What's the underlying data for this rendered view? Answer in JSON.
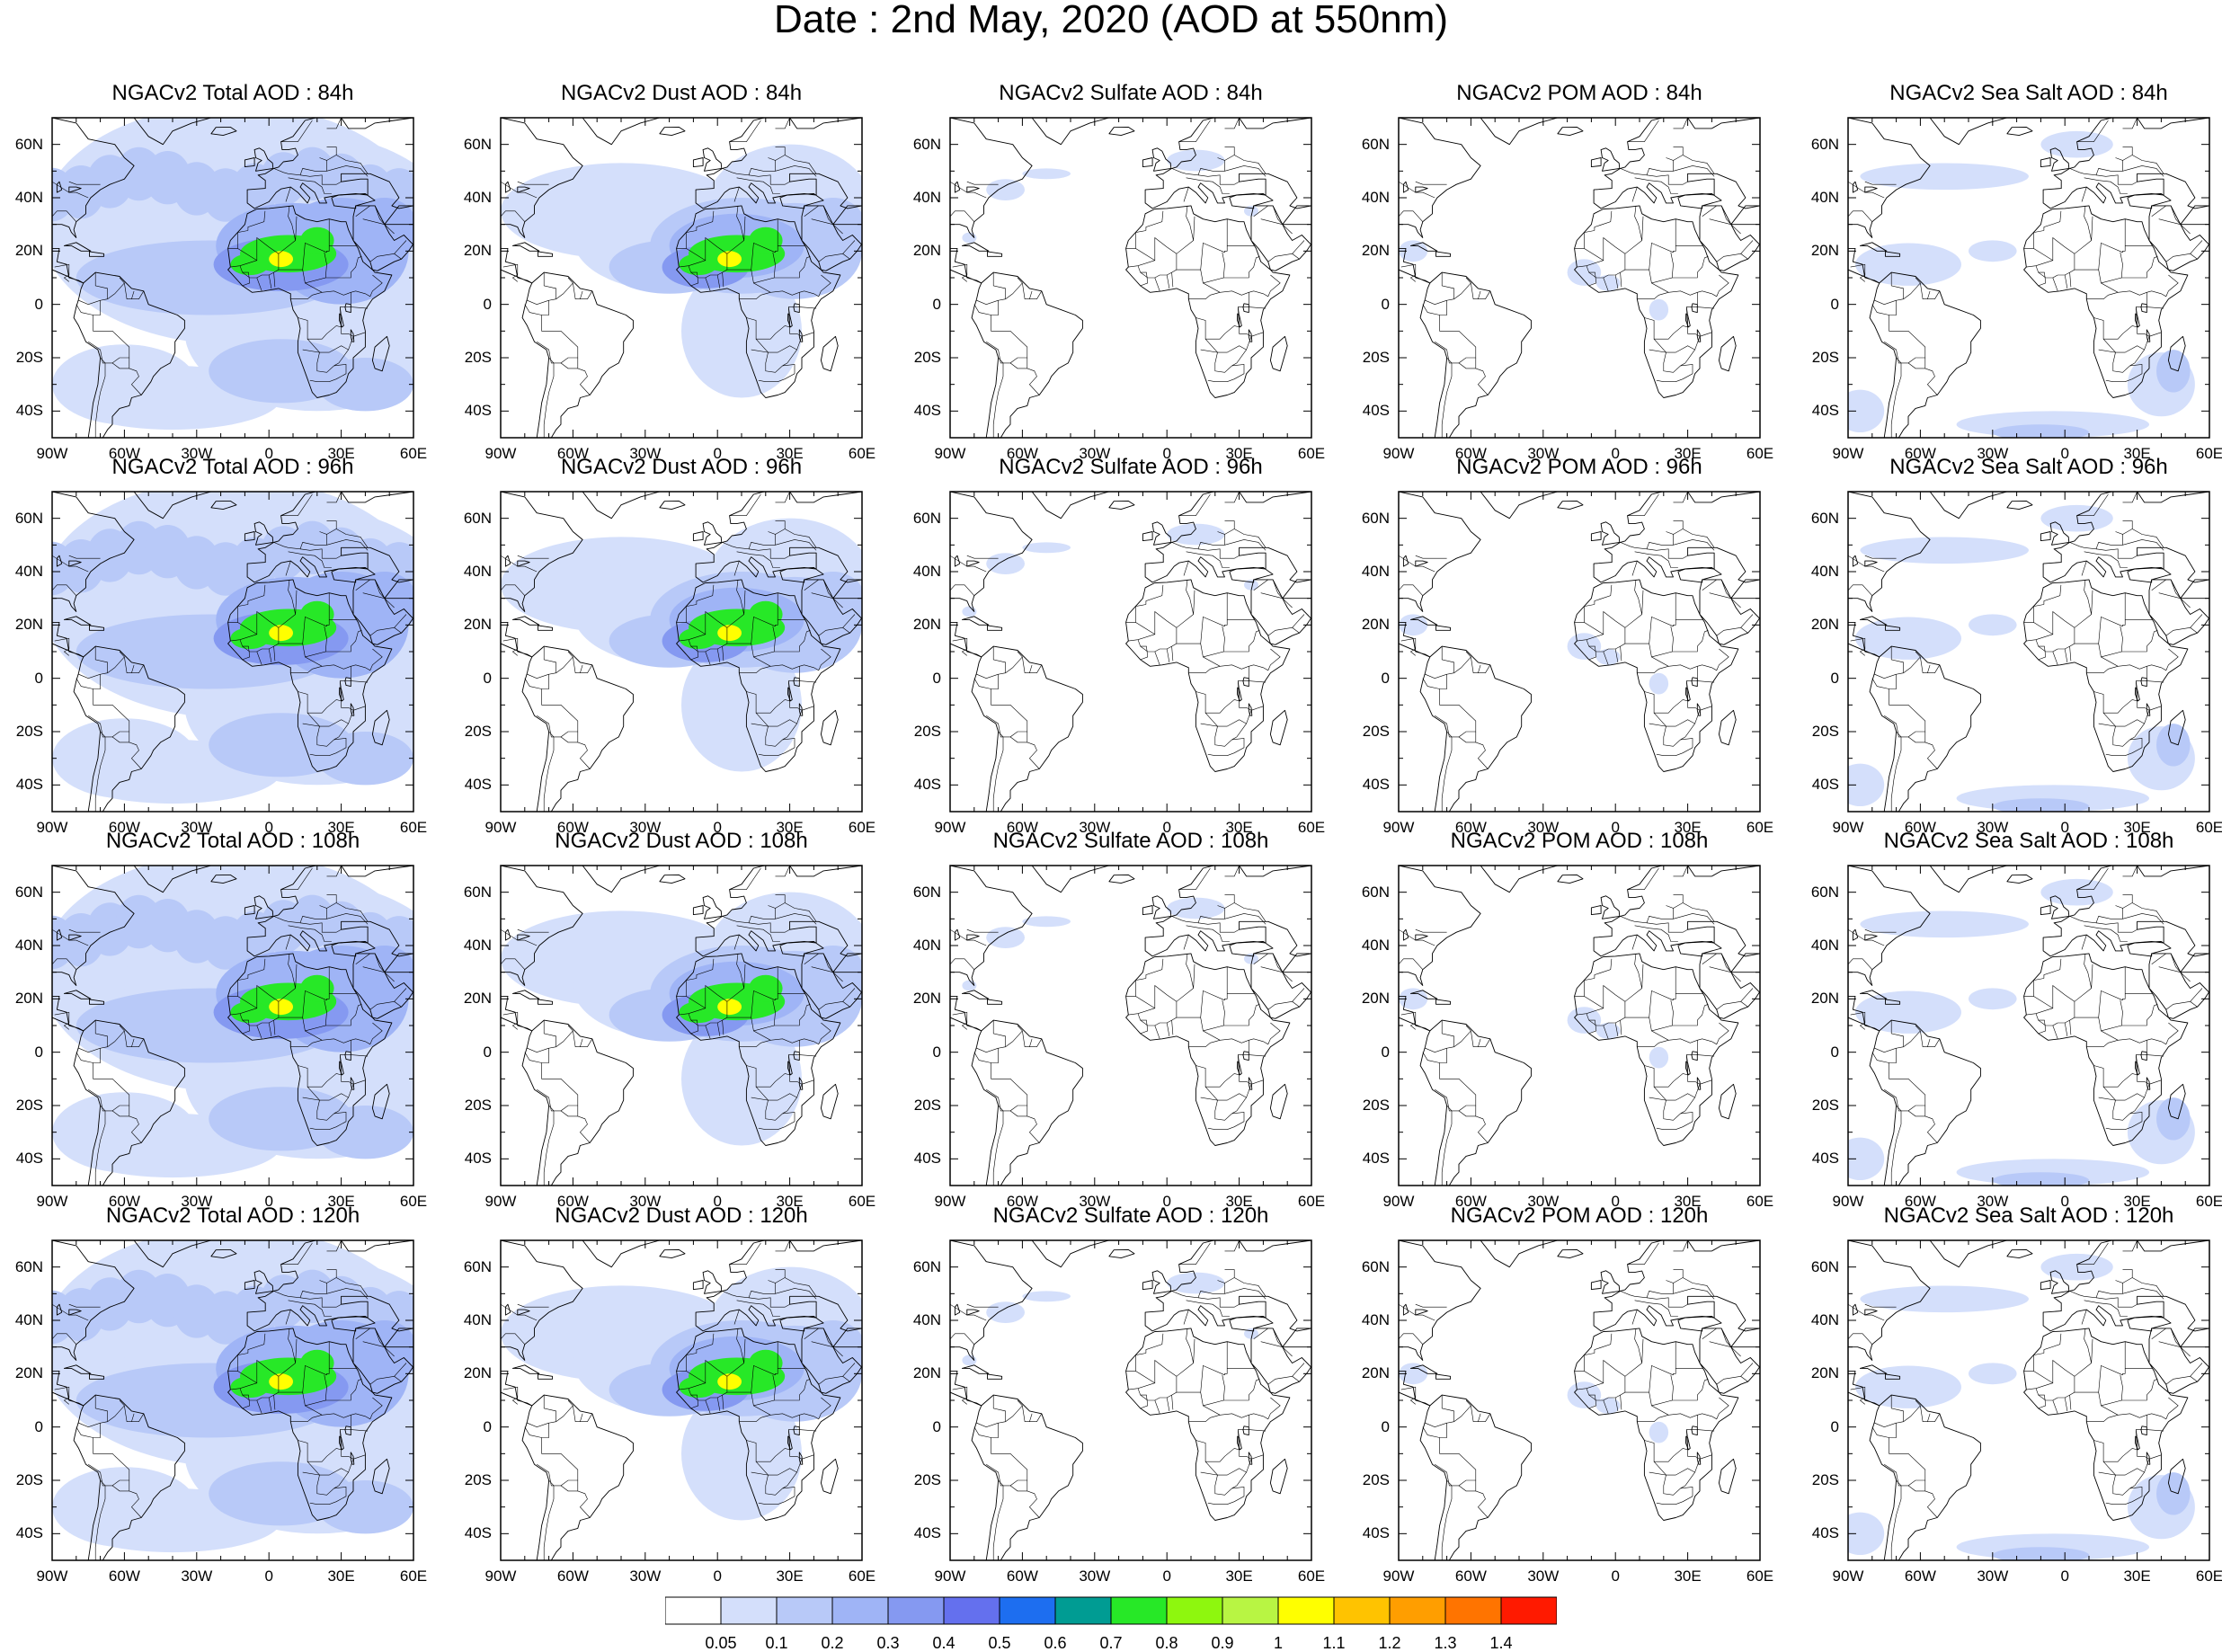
{
  "title": "Date : 2nd May, 2020 (AOD at 550nm)",
  "panels": [
    {
      "title": "NGACv2 Total AOD : 84h",
      "field": "total",
      "hour": 84
    },
    {
      "title": "NGACv2 Dust AOD : 84h",
      "field": "dust",
      "hour": 84
    },
    {
      "title": "NGACv2 Sulfate AOD : 84h",
      "field": "sulfate",
      "hour": 84
    },
    {
      "title": "NGACv2 POM AOD : 84h",
      "field": "pom",
      "hour": 84
    },
    {
      "title": "NGACv2 Sea Salt AOD : 84h",
      "field": "seasalt",
      "hour": 84
    },
    {
      "title": "NGACv2 Total AOD : 96h",
      "field": "total",
      "hour": 96
    },
    {
      "title": "NGACv2 Dust AOD : 96h",
      "field": "dust",
      "hour": 96
    },
    {
      "title": "NGACv2 Sulfate AOD : 96h",
      "field": "sulfate",
      "hour": 96
    },
    {
      "title": "NGACv2 POM AOD : 96h",
      "field": "pom",
      "hour": 96
    },
    {
      "title": "NGACv2 Sea Salt AOD : 96h",
      "field": "seasalt",
      "hour": 96
    },
    {
      "title": "NGACv2 Total AOD : 108h",
      "field": "total",
      "hour": 108
    },
    {
      "title": "NGACv2 Dust AOD : 108h",
      "field": "dust",
      "hour": 108
    },
    {
      "title": "NGACv2 Sulfate AOD : 108h",
      "field": "sulfate",
      "hour": 108
    },
    {
      "title": "NGACv2 POM AOD : 108h",
      "field": "pom",
      "hour": 108
    },
    {
      "title": "NGACv2 Sea Salt AOD : 108h",
      "field": "seasalt",
      "hour": 108
    },
    {
      "title": "NGACv2 Total AOD : 120h",
      "field": "total",
      "hour": 120
    },
    {
      "title": "NGACv2 Dust AOD : 120h",
      "field": "dust",
      "hour": 120
    },
    {
      "title": "NGACv2 Sulfate AOD : 120h",
      "field": "sulfate",
      "hour": 120
    },
    {
      "title": "NGACv2 POM AOD : 120h",
      "field": "pom",
      "hour": 120
    },
    {
      "title": "NGACv2 Sea Salt  AOD : 120h",
      "field": "seasalt",
      "hour": 120
    }
  ],
  "lon_range": [
    -90,
    60
  ],
  "lat_range": [
    -50,
    70
  ],
  "lon_ticks": [
    {
      "value": -90,
      "label": "90W"
    },
    {
      "value": -60,
      "label": "60W"
    },
    {
      "value": -30,
      "label": "30W"
    },
    {
      "value": 0,
      "label": "0"
    },
    {
      "value": 30,
      "label": "30E"
    },
    {
      "value": 60,
      "label": "60E"
    }
  ],
  "lat_ticks": [
    {
      "value": 60,
      "label": "60N"
    },
    {
      "value": 40,
      "label": "40N"
    },
    {
      "value": 20,
      "label": "20N"
    },
    {
      "value": 0,
      "label": "0"
    },
    {
      "value": -20,
      "label": "20S"
    },
    {
      "value": -40,
      "label": "40S"
    }
  ],
  "colorbar": {
    "labels": [
      "0.05",
      "0.1",
      "0.2",
      "0.3",
      "0.4",
      "0.5",
      "0.6",
      "0.7",
      "0.8",
      "0.9",
      "1",
      "1.1",
      "1.2",
      "1.3",
      "1.4"
    ],
    "colors": [
      "#ffffff",
      "#d4dffb",
      "#b8c9f8",
      "#9fb4f6",
      "#8599f1",
      "#6470ee",
      "#1d6ef0",
      "#009c93",
      "#27e827",
      "#8ef70e",
      "#b8f543",
      "#ffff00",
      "#ffc300",
      "#ff9e00",
      "#ff7400",
      "#ff1a00"
    ]
  },
  "land_color": "#ffffff",
  "outline_color": "#000000"
}
